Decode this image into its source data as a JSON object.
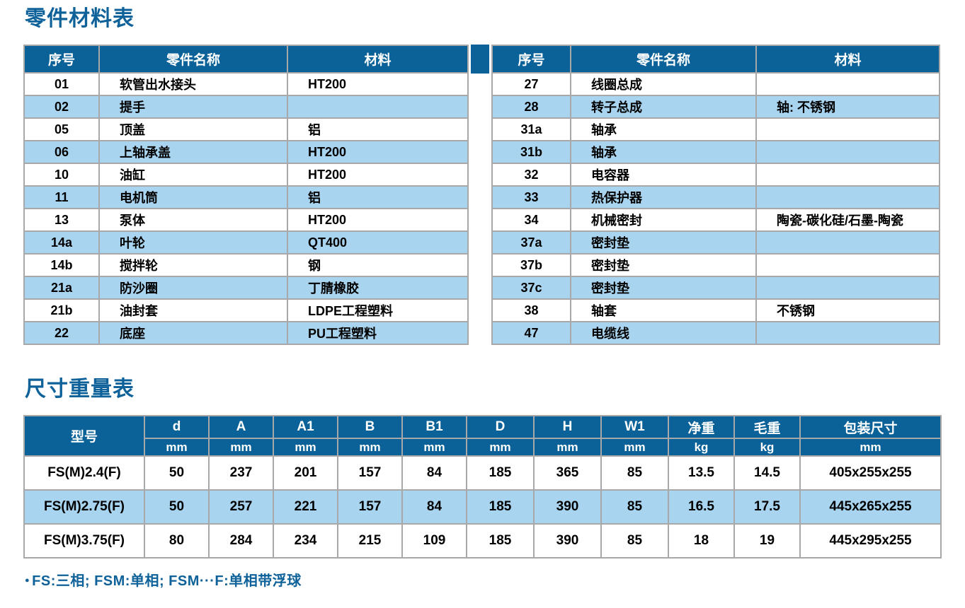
{
  "sections": {
    "parts_title": "零件材料表",
    "dims_title": "尺寸重量表"
  },
  "parts_table": {
    "headers": [
      "序号",
      "零件名称",
      "材料"
    ],
    "left_rows": [
      [
        "01",
        "软管出水接头",
        "HT200"
      ],
      [
        "02",
        "提手",
        ""
      ],
      [
        "05",
        "顶盖",
        "铝"
      ],
      [
        "06",
        "上轴承盖",
        "HT200"
      ],
      [
        "10",
        "油缸",
        "HT200"
      ],
      [
        "11",
        "电机筒",
        "铝"
      ],
      [
        "13",
        "泵体",
        "HT200"
      ],
      [
        "14a",
        "叶轮",
        "QT400"
      ],
      [
        "14b",
        "搅拌轮",
        "钢"
      ],
      [
        "21a",
        "防沙圈",
        "丁腈橡胶"
      ],
      [
        "21b",
        "油封套",
        "LDPE工程塑料"
      ],
      [
        "22",
        "底座",
        "PU工程塑料"
      ]
    ],
    "right_rows": [
      [
        "27",
        "线圈总成",
        ""
      ],
      [
        "28",
        "转子总成",
        "轴: 不锈钢"
      ],
      [
        "31a",
        "轴承",
        ""
      ],
      [
        "31b",
        "轴承",
        ""
      ],
      [
        "32",
        "电容器",
        ""
      ],
      [
        "33",
        "热保护器",
        ""
      ],
      [
        "34",
        "机械密封",
        "陶瓷-碳化硅/石墨-陶瓷"
      ],
      [
        "37a",
        "密封垫",
        ""
      ],
      [
        "37b",
        "密封垫",
        ""
      ],
      [
        "37c",
        "密封垫",
        ""
      ],
      [
        "38",
        "轴套",
        "不锈钢"
      ],
      [
        "47",
        "电缆线",
        ""
      ]
    ]
  },
  "dimensions_table": {
    "model_header": "型号",
    "columns": [
      {
        "label": "d",
        "unit": "mm"
      },
      {
        "label": "A",
        "unit": "mm"
      },
      {
        "label": "A1",
        "unit": "mm"
      },
      {
        "label": "B",
        "unit": "mm"
      },
      {
        "label": "B1",
        "unit": "mm"
      },
      {
        "label": "D",
        "unit": "mm"
      },
      {
        "label": "H",
        "unit": "mm"
      },
      {
        "label": "W1",
        "unit": "mm"
      },
      {
        "label": "净重",
        "unit": "kg"
      },
      {
        "label": "毛重",
        "unit": "kg"
      },
      {
        "label": "包装尺寸",
        "unit": "mm"
      }
    ],
    "rows": [
      {
        "model": "FS(M)2.4(F)",
        "values": [
          "50",
          "237",
          "201",
          "157",
          "84",
          "185",
          "365",
          "85",
          "13.5",
          "14.5",
          "405x255x255"
        ]
      },
      {
        "model": "FS(M)2.75(F)",
        "values": [
          "50",
          "257",
          "221",
          "157",
          "84",
          "185",
          "390",
          "85",
          "16.5",
          "17.5",
          "445x265x255"
        ]
      },
      {
        "model": "FS(M)3.75(F)",
        "values": [
          "80",
          "284",
          "234",
          "215",
          "109",
          "185",
          "390",
          "85",
          "18",
          "19",
          "445x295x255"
        ]
      }
    ]
  },
  "footnote": {
    "bullet": "●",
    "text": "FS:三相; FSM:单相; FSM···F:单相带浮球"
  },
  "colors": {
    "header_blue": "#0b6298",
    "stripe_blue": "#a9d4ef",
    "title_blue": "#0e6299",
    "border_gray": "#a8a8a8"
  }
}
